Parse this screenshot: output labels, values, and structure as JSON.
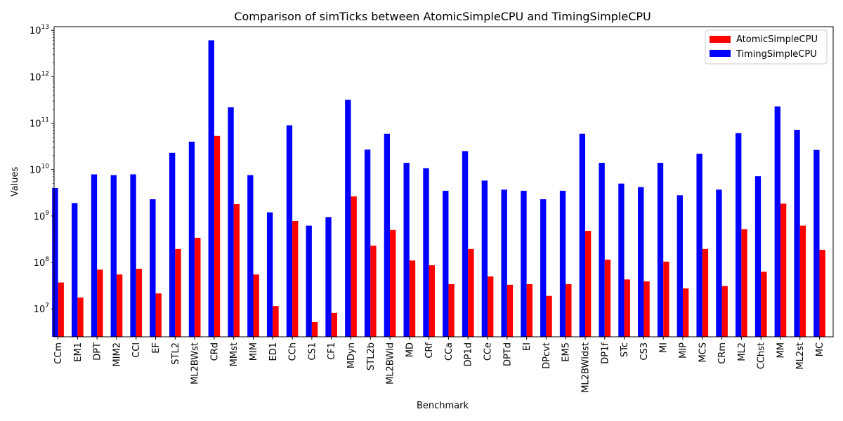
{
  "chart_data": {
    "type": "bar",
    "title": "Comparison of simTicks between AtomicSimpleCPU and TimingSimpleCPU",
    "xlabel": "Benchmark",
    "ylabel": "Values",
    "yscale": "log",
    "ylim": [
      2500000,
      12000000000000
    ],
    "yticks": [
      {
        "value": 10000000,
        "base": "10",
        "exp": "7"
      },
      {
        "value": 100000000,
        "base": "10",
        "exp": "8"
      },
      {
        "value": 1000000000,
        "base": "10",
        "exp": "9"
      },
      {
        "value": 10000000000,
        "base": "10",
        "exp": "10"
      },
      {
        "value": 100000000000,
        "base": "10",
        "exp": "11"
      },
      {
        "value": 1000000000000,
        "base": "10",
        "exp": "12"
      },
      {
        "value": 10000000000000,
        "base": "10",
        "exp": "13"
      }
    ],
    "legend_position": "top-right",
    "categories": [
      "CCm",
      "EM1",
      "DPT",
      "MIM2",
      "CCl",
      "EF",
      "STL2",
      "ML2BWst",
      "CRd",
      "MMst",
      "MIM",
      "ED1",
      "CCh",
      "CS1",
      "CF1",
      "MDyn",
      "STL2b",
      "ML2BWld",
      "MD",
      "CRf",
      "CCa",
      "DP1d",
      "CCe",
      "DPTd",
      "EI",
      "DPcvt",
      "EM5",
      "ML2BWldst",
      "DP1f",
      "STc",
      "CS3",
      "MI",
      "MIP",
      "MCS",
      "CRm",
      "ML2",
      "CChst",
      "MM",
      "ML2st",
      "MC"
    ],
    "series": [
      {
        "name": "TimingSimpleCPU",
        "color": "#0000ff",
        "values": [
          4000000000,
          1900000000,
          7900000000,
          7600000000,
          7900000000,
          2300000000,
          23000000000,
          40000000000,
          6100000000000,
          220000000000,
          7600000000,
          1200000000,
          90000000000,
          620000000,
          950000000,
          320000000000,
          27000000000,
          59000000000,
          14000000000,
          10700000000,
          3500000000,
          25000000000,
          5800000000,
          3700000000,
          3500000000,
          2300000000,
          3500000000,
          59000000000,
          14000000000,
          5000000000,
          4200000000,
          14000000000,
          2800000000,
          22000000000,
          3700000000,
          61000000000,
          7200000000,
          230000000000,
          72000000000,
          26500000000
        ]
      },
      {
        "name": "AtomicSimpleCPU",
        "color": "#ff0000",
        "values": [
          37000000,
          17500000,
          70000000,
          55000000,
          73000000,
          21500000,
          195000000,
          340000000,
          53000000000,
          1800000000,
          55000000,
          11500000,
          780000000,
          5200000,
          8200000,
          2650000000,
          230000000,
          500000000,
          110000000,
          87000000,
          34000000,
          195000000,
          50000000,
          33000000,
          34000000,
          19000000,
          34000000,
          480000000,
          115000000,
          43000000,
          39000000,
          104000000,
          27500000,
          195000000,
          31000000,
          520000000,
          63000000,
          1850000000,
          620000000,
          187000000
        ]
      }
    ]
  }
}
